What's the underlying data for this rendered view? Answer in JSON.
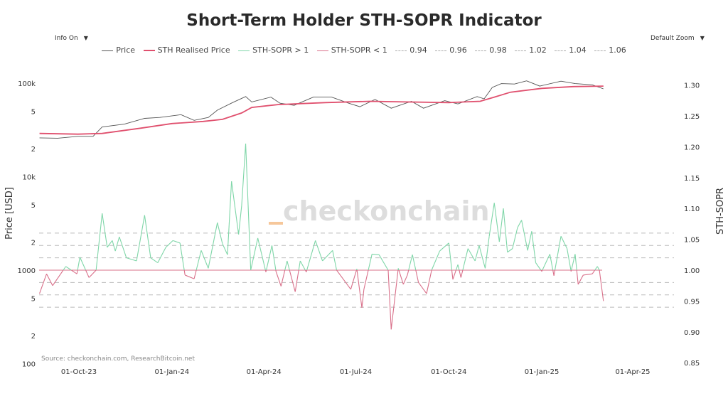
{
  "header": {
    "title": "Short-Term Holder STH-SOPR Indicator",
    "info_button": "Info On",
    "zoom_button": "Default Zoom",
    "dropdown_icon": "triangle-down-icon"
  },
  "colors": {
    "price": "#555555",
    "realised": "#e0506e",
    "sopr_above": "#7fd6a8",
    "sopr_below": "#d9708a",
    "levels": "#bbbbbb",
    "watermark": "#dddddd",
    "watermark_accent": "#f6c79a"
  },
  "watermark": "checkonchain",
  "source": "Source: checkonchain.com, ResearchBitcoin.net",
  "chart_data": {
    "type": "line",
    "title": "Short-Term Holder STH-SOPR Indicator",
    "legend_position": "top",
    "legend": [
      "Price",
      "STH Realised Price",
      "STH-SOPR > 1",
      "STH-SOPR < 1",
      "0.94",
      "0.96",
      "0.98",
      "1.02",
      "1.04",
      "1.06"
    ],
    "x_axis": {
      "type": "date",
      "range": [
        "2023-08-23",
        "2025-04-20"
      ],
      "ticks": [
        "01-Oct-23",
        "01-Jan-24",
        "01-Apr-24",
        "01-Jul-24",
        "01-Oct-24",
        "01-Jan-25",
        "01-Apr-25"
      ],
      "tick_dates": [
        "2023-10-01",
        "2024-01-01",
        "2024-04-01",
        "2024-07-01",
        "2024-10-01",
        "2025-01-01",
        "2025-04-01"
      ]
    },
    "y_left": {
      "label": "Price [USD]",
      "scale": "log",
      "range": [
        100,
        130000
      ],
      "ticks": [
        {
          "v": 100000,
          "t": "100k"
        },
        {
          "v": 50000,
          "t": "5"
        },
        {
          "v": 20000,
          "t": "2"
        },
        {
          "v": 10000,
          "t": "10k"
        },
        {
          "v": 5000,
          "t": "5"
        },
        {
          "v": 2000,
          "t": "2"
        },
        {
          "v": 1000,
          "t": "1000"
        },
        {
          "v": 500,
          "t": "5"
        },
        {
          "v": 200,
          "t": "2"
        },
        {
          "v": 100,
          "t": "100"
        }
      ]
    },
    "y_right": {
      "label": "STH-SOPR",
      "scale": "linear",
      "range": [
        0.85,
        1.31
      ],
      "ticks": [
        "1.30",
        "1.25",
        "1.20",
        "1.15",
        "1.10",
        "1.05",
        "1.00",
        "0.95",
        "0.90",
        "0.85"
      ]
    },
    "levels": [
      0.94,
      0.96,
      0.98,
      1.02,
      1.04,
      1.06
    ],
    "series": [
      {
        "name": "Price",
        "axis": "left",
        "points": [
          [
            "2023-08-23",
            26000
          ],
          [
            "2023-09-10",
            25800
          ],
          [
            "2023-09-30",
            27000
          ],
          [
            "2023-10-15",
            27000
          ],
          [
            "2023-10-24",
            34000
          ],
          [
            "2023-11-15",
            36500
          ],
          [
            "2023-12-05",
            42000
          ],
          [
            "2023-12-20",
            43000
          ],
          [
            "2024-01-10",
            46000
          ],
          [
            "2024-01-23",
            40000
          ],
          [
            "2024-02-06",
            43000
          ],
          [
            "2024-02-15",
            51500
          ],
          [
            "2024-03-01",
            62000
          ],
          [
            "2024-03-14",
            72000
          ],
          [
            "2024-03-20",
            63000
          ],
          [
            "2024-04-08",
            71000
          ],
          [
            "2024-04-17",
            61000
          ],
          [
            "2024-05-01",
            58000
          ],
          [
            "2024-05-20",
            71000
          ],
          [
            "2024-06-07",
            71000
          ],
          [
            "2024-06-24",
            61000
          ],
          [
            "2024-07-05",
            56000
          ],
          [
            "2024-07-20",
            67000
          ],
          [
            "2024-08-05",
            54000
          ],
          [
            "2024-08-25",
            64000
          ],
          [
            "2024-09-06",
            54000
          ],
          [
            "2024-09-27",
            65000
          ],
          [
            "2024-10-10",
            60000
          ],
          [
            "2024-10-29",
            72000
          ],
          [
            "2024-11-05",
            68000
          ],
          [
            "2024-11-13",
            90000
          ],
          [
            "2024-11-22",
            99000
          ],
          [
            "2024-12-05",
            98000
          ],
          [
            "2024-12-17",
            106000
          ],
          [
            "2024-12-30",
            93000
          ],
          [
            "2025-01-20",
            105000
          ],
          [
            "2025-02-03",
            99000
          ],
          [
            "2025-02-20",
            96000
          ],
          [
            "2025-03-03",
            87000
          ]
        ]
      },
      {
        "name": "STH Realised Price",
        "axis": "left",
        "points": [
          [
            "2023-08-23",
            29000
          ],
          [
            "2023-09-30",
            28500
          ],
          [
            "2023-10-24",
            29000
          ],
          [
            "2023-12-01",
            33000
          ],
          [
            "2024-01-01",
            37000
          ],
          [
            "2024-02-01",
            39000
          ],
          [
            "2024-02-20",
            41000
          ],
          [
            "2024-03-10",
            48000
          ],
          [
            "2024-03-20",
            55000
          ],
          [
            "2024-04-15",
            59000
          ],
          [
            "2024-06-01",
            62000
          ],
          [
            "2024-07-15",
            64000
          ],
          [
            "2024-08-20",
            63000
          ],
          [
            "2024-10-01",
            62000
          ],
          [
            "2024-11-01",
            64000
          ],
          [
            "2024-11-15",
            71000
          ],
          [
            "2024-12-01",
            80000
          ],
          [
            "2025-01-01",
            88000
          ],
          [
            "2025-02-01",
            92000
          ],
          [
            "2025-03-03",
            93000
          ]
        ]
      },
      {
        "name": "STH-SOPR",
        "axis": "right",
        "points": [
          [
            "2023-08-23",
            0.962
          ],
          [
            "2023-08-30",
            0.994
          ],
          [
            "2023-09-05",
            0.975
          ],
          [
            "2023-09-18",
            1.006
          ],
          [
            "2023-09-29",
            0.994
          ],
          [
            "2023-10-02",
            1.021
          ],
          [
            "2023-10-11",
            0.988
          ],
          [
            "2023-10-18",
            1.0
          ],
          [
            "2023-10-24",
            1.092
          ],
          [
            "2023-10-29",
            1.037
          ],
          [
            "2023-11-03",
            1.048
          ],
          [
            "2023-11-06",
            1.031
          ],
          [
            "2023-11-10",
            1.054
          ],
          [
            "2023-11-17",
            1.02
          ],
          [
            "2023-11-27",
            1.015
          ],
          [
            "2023-12-05",
            1.089
          ],
          [
            "2023-12-11",
            1.02
          ],
          [
            "2023-12-18",
            1.012
          ],
          [
            "2023-12-26",
            1.037
          ],
          [
            "2024-01-02",
            1.048
          ],
          [
            "2024-01-09",
            1.044
          ],
          [
            "2024-01-14",
            0.992
          ],
          [
            "2024-01-23",
            0.986
          ],
          [
            "2024-01-30",
            1.032
          ],
          [
            "2024-02-06",
            1.003
          ],
          [
            "2024-02-15",
            1.077
          ],
          [
            "2024-02-20",
            1.043
          ],
          [
            "2024-02-25",
            1.025
          ],
          [
            "2024-02-29",
            1.144
          ],
          [
            "2024-03-07",
            1.058
          ],
          [
            "2024-03-10",
            1.104
          ],
          [
            "2024-03-14",
            1.205
          ],
          [
            "2024-03-19",
            1.0
          ],
          [
            "2024-03-26",
            1.052
          ],
          [
            "2024-04-03",
            0.997
          ],
          [
            "2024-04-09",
            1.04
          ],
          [
            "2024-04-13",
            0.998
          ],
          [
            "2024-04-18",
            0.974
          ],
          [
            "2024-04-24",
            1.015
          ],
          [
            "2024-05-02",
            0.965
          ],
          [
            "2024-05-07",
            1.015
          ],
          [
            "2024-05-13",
            0.997
          ],
          [
            "2024-05-22",
            1.048
          ],
          [
            "2024-05-29",
            1.015
          ],
          [
            "2024-06-08",
            1.032
          ],
          [
            "2024-06-12",
            1.0
          ],
          [
            "2024-06-26",
            0.969
          ],
          [
            "2024-07-02",
            1.002
          ],
          [
            "2024-07-07",
            0.939
          ],
          [
            "2024-07-09",
            0.969
          ],
          [
            "2024-07-17",
            1.026
          ],
          [
            "2024-07-24",
            1.025
          ],
          [
            "2024-08-02",
            1.0
          ],
          [
            "2024-08-05",
            0.904
          ],
          [
            "2024-08-12",
            1.003
          ],
          [
            "2024-08-17",
            0.977
          ],
          [
            "2024-08-21",
            0.992
          ],
          [
            "2024-08-26",
            1.025
          ],
          [
            "2024-09-01",
            0.98
          ],
          [
            "2024-09-09",
            0.962
          ],
          [
            "2024-09-14",
            1.0
          ],
          [
            "2024-09-22",
            1.031
          ],
          [
            "2024-10-01",
            1.044
          ],
          [
            "2024-10-05",
            0.985
          ],
          [
            "2024-10-10",
            1.009
          ],
          [
            "2024-10-13",
            0.988
          ],
          [
            "2024-10-20",
            1.035
          ],
          [
            "2024-10-27",
            1.015
          ],
          [
            "2024-10-31",
            1.04
          ],
          [
            "2024-11-06",
            1.003
          ],
          [
            "2024-11-10",
            1.055
          ],
          [
            "2024-11-15",
            1.109
          ],
          [
            "2024-11-20",
            1.046
          ],
          [
            "2024-11-24",
            1.1
          ],
          [
            "2024-11-28",
            1.029
          ],
          [
            "2024-12-03",
            1.035
          ],
          [
            "2024-12-08",
            1.069
          ],
          [
            "2024-12-12",
            1.081
          ],
          [
            "2024-12-18",
            1.032
          ],
          [
            "2024-12-22",
            1.063
          ],
          [
            "2024-12-26",
            1.012
          ],
          [
            "2025-01-01",
            0.998
          ],
          [
            "2025-01-09",
            1.026
          ],
          [
            "2025-01-13",
            0.991
          ],
          [
            "2025-01-20",
            1.055
          ],
          [
            "2025-01-26",
            1.035
          ],
          [
            "2025-01-30",
            0.998
          ],
          [
            "2025-02-03",
            1.026
          ],
          [
            "2025-02-06",
            0.977
          ],
          [
            "2025-02-11",
            0.992
          ],
          [
            "2025-02-20",
            0.994
          ],
          [
            "2025-02-25",
            1.006
          ],
          [
            "2025-02-27",
            1.0
          ],
          [
            "2025-03-03",
            0.95
          ]
        ]
      }
    ]
  }
}
